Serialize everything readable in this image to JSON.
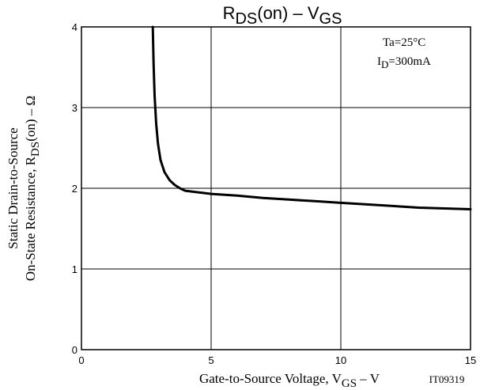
{
  "chart_data": {
    "type": "line",
    "title": {
      "main": "R",
      "sub": "DS",
      "mid": "(on)  –  V",
      "sub2": "GS"
    },
    "xlabel": {
      "main": "Gate-to-Source Voltage, V",
      "sub": "GS",
      "tail": "  –  V"
    },
    "ylabel": {
      "line1": "Static Drain-to-Source",
      "line2_main": "On-State Resistance, R",
      "line2_sub": "DS",
      "line2_tail": "(on)  –  Ω"
    },
    "xlim": [
      0,
      15
    ],
    "ylim": [
      0,
      4
    ],
    "xticks": [
      0,
      5,
      10,
      15
    ],
    "yticks": [
      0,
      1,
      2,
      3,
      4
    ],
    "x_tick_labels": [
      "0",
      "5",
      "10",
      "15"
    ],
    "y_tick_labels": [
      "0",
      "1",
      "2",
      "3",
      "4"
    ],
    "grid": true,
    "annotations": {
      "ta": "Ta=25°C",
      "id_main": "I",
      "id_sub": "D",
      "id_tail": "=300mA",
      "code": "IT09319"
    },
    "series": [
      {
        "x": [
          2.75,
          2.78,
          2.82,
          2.88,
          2.95,
          3.05,
          3.2,
          3.4,
          3.6,
          3.8,
          4.0,
          4.5,
          5,
          6,
          7,
          8,
          9,
          10,
          11,
          12,
          13,
          14,
          15
        ],
        "y": [
          4.0,
          3.55,
          3.15,
          2.8,
          2.55,
          2.35,
          2.2,
          2.1,
          2.04,
          2.0,
          1.97,
          1.95,
          1.93,
          1.91,
          1.88,
          1.86,
          1.84,
          1.82,
          1.8,
          1.78,
          1.76,
          1.75,
          1.74
        ]
      }
    ]
  }
}
